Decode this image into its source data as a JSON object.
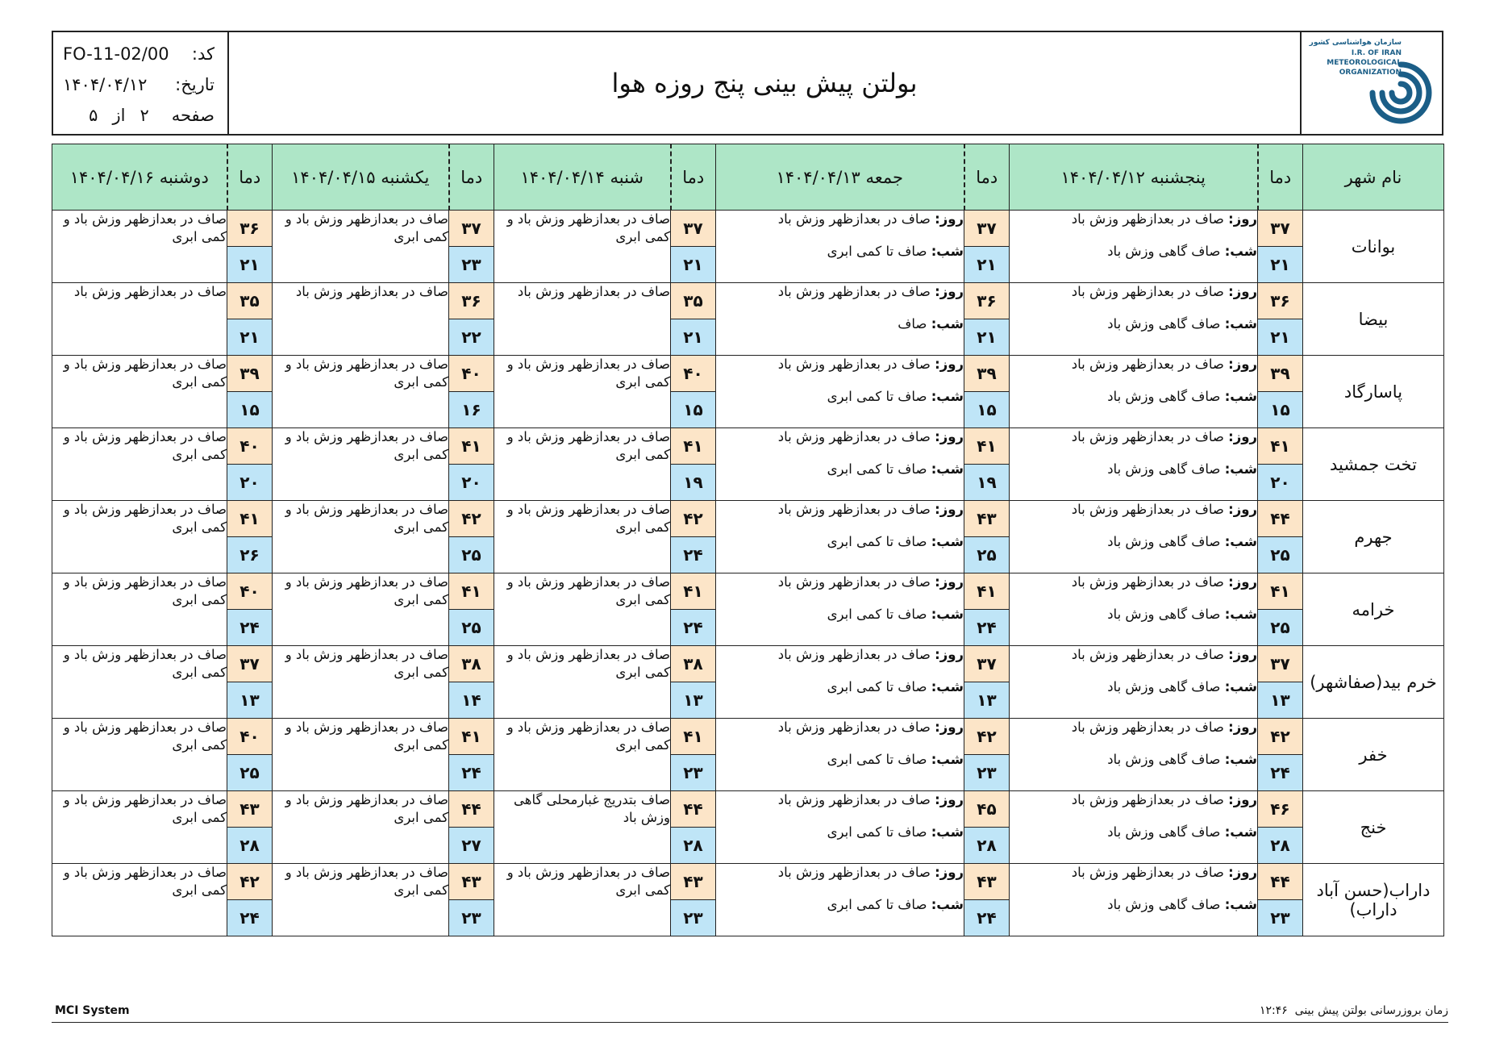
{
  "header": {
    "title": "بولتن پیش بینی پنج روزه هوا",
    "org_fa": "سازمان هواشناسی کشور",
    "org_en": [
      "I.R. OF IRAN",
      "METEOROLOGICAL",
      "ORGANIZATION"
    ],
    "code_label": "کد:",
    "code_value": "FO-11-02/00",
    "date_label": "تاریخ:",
    "date_value": "۱۴۰۴/۰۴/۱۲",
    "page_label": "صفحه",
    "page_number": "۲",
    "page_of": "از",
    "page_total": "۵"
  },
  "columns": {
    "city": "نام شهر",
    "temp": "دما",
    "days": [
      "پنجشنبه ۱۴۰۴/۰۴/۱۲",
      "جمعه ۱۴۰۴/۰۴/۱۳",
      "شنبه ۱۴۰۴/۰۴/۱۴",
      "یکشنبه ۱۴۰۴/۰۴/۱۵",
      "دوشنبه ۱۴۰۴/۰۴/۱۶"
    ]
  },
  "labels": {
    "day": "روز:",
    "night": "شب:"
  },
  "rows": [
    {
      "city": "بوانات",
      "d1": "صاف در بعدازظهر وزش باد",
      "n1": "صاف گاهی وزش باد",
      "d2": "صاف در بعدازظهر وزش باد",
      "n2": "صاف تا کمی ابری",
      "d3": "صاف در بعدازظهر وزش باد و کمی ابری",
      "d4": "صاف در بعدازظهر وزش باد و کمی ابری",
      "d5": "صاف در بعدازظهر وزش باد و کمی ابری",
      "t": [
        [
          "۳۷",
          "۲۱"
        ],
        [
          "۳۷",
          "۲۱"
        ],
        [
          "۳۷",
          "۲۱"
        ],
        [
          "۳۷",
          "۲۳"
        ],
        [
          "۳۶",
          "۲۱"
        ]
      ]
    },
    {
      "city": "بیضا",
      "d1": "صاف در بعدازظهر وزش باد",
      "n1": "صاف گاهی وزش باد",
      "d2": "صاف در بعدازظهر وزش باد",
      "n2": "صاف",
      "d3": "صاف در بعدازظهر وزش باد",
      "d4": "صاف در بعدازظهر وزش باد",
      "d5": "صاف در بعدازظهر وزش باد",
      "t": [
        [
          "۳۶",
          "۲۱"
        ],
        [
          "۳۶",
          "۲۱"
        ],
        [
          "۳۵",
          "۲۱"
        ],
        [
          "۳۶",
          "۲۲"
        ],
        [
          "۳۵",
          "۲۱"
        ]
      ]
    },
    {
      "city": "پاسارگاد",
      "d1": "صاف در بعدازظهر وزش باد",
      "n1": "صاف گاهی وزش باد",
      "d2": "صاف در بعدازظهر وزش باد",
      "n2": "صاف تا کمی ابری",
      "d3": "صاف در بعدازظهر وزش باد و کمی ابری",
      "d4": "صاف در بعدازظهر وزش باد و کمی ابری",
      "d5": "صاف در بعدازظهر وزش باد و کمی ابری",
      "t": [
        [
          "۳۹",
          "۱۵"
        ],
        [
          "۳۹",
          "۱۵"
        ],
        [
          "۴۰",
          "۱۵"
        ],
        [
          "۴۰",
          "۱۶"
        ],
        [
          "۳۹",
          "۱۵"
        ]
      ]
    },
    {
      "city": "تخت جمشید",
      "d1": "صاف در بعدازظهر وزش باد",
      "n1": "صاف گاهی وزش باد",
      "d2": "صاف در بعدازظهر وزش باد",
      "n2": "صاف تا کمی ابری",
      "d3": "صاف در بعدازظهر وزش باد و کمی ابری",
      "d4": "صاف در بعدازظهر وزش باد و کمی ابری",
      "d5": "صاف در بعدازظهر وزش باد و کمی ابری",
      "t": [
        [
          "۴۱",
          "۲۰"
        ],
        [
          "۴۱",
          "۱۹"
        ],
        [
          "۴۱",
          "۱۹"
        ],
        [
          "۴۱",
          "۲۰"
        ],
        [
          "۴۰",
          "۲۰"
        ]
      ]
    },
    {
      "city": "جهرم",
      "d1": "صاف در بعدازظهر وزش باد",
      "n1": "صاف گاهی وزش باد",
      "d2": "صاف در بعدازظهر وزش باد",
      "n2": "صاف تا کمی ابری",
      "d3": "صاف در بعدازظهر وزش باد و کمی ابری",
      "d4": "صاف در بعدازظهر وزش باد و کمی ابری",
      "d5": "صاف در بعدازظهر وزش باد و کمی ابری",
      "t": [
        [
          "۴۴",
          "۲۵"
        ],
        [
          "۴۳",
          "۲۵"
        ],
        [
          "۴۲",
          "۲۴"
        ],
        [
          "۴۲",
          "۲۵"
        ],
        [
          "۴۱",
          "۲۶"
        ]
      ]
    },
    {
      "city": "خرامه",
      "d1": "صاف در بعدازظهر وزش باد",
      "n1": "صاف گاهی وزش باد",
      "d2": "صاف در بعدازظهر وزش باد",
      "n2": "صاف تا کمی ابری",
      "d3": "صاف در بعدازظهر وزش باد و کمی ابری",
      "d4": "صاف در بعدازظهر وزش باد و کمی ابری",
      "d5": "صاف در بعدازظهر وزش باد و کمی ابری",
      "t": [
        [
          "۴۱",
          "۲۵"
        ],
        [
          "۴۱",
          "۲۴"
        ],
        [
          "۴۱",
          "۲۴"
        ],
        [
          "۴۱",
          "۲۵"
        ],
        [
          "۴۰",
          "۲۴"
        ]
      ]
    },
    {
      "city": "خرم بید(صفاشهر)",
      "d1": "صاف در بعدازظهر وزش باد",
      "n1": "صاف گاهی وزش باد",
      "d2": "صاف در بعدازظهر وزش باد",
      "n2": "صاف تا کمی ابری",
      "d3": "صاف در بعدازظهر وزش باد و کمی ابری",
      "d4": "صاف در بعدازظهر وزش باد و کمی ابری",
      "d5": "صاف در بعدازظهر وزش باد و کمی ابری",
      "t": [
        [
          "۳۷",
          "۱۳"
        ],
        [
          "۳۷",
          "۱۳"
        ],
        [
          "۳۸",
          "۱۳"
        ],
        [
          "۳۸",
          "۱۴"
        ],
        [
          "۳۷",
          "۱۳"
        ]
      ]
    },
    {
      "city": "خفر",
      "d1": "صاف در بعدازظهر وزش باد",
      "n1": "صاف گاهی وزش باد",
      "d2": "صاف در بعدازظهر وزش باد",
      "n2": "صاف تا کمی ابری",
      "d3": "صاف در بعدازظهر وزش باد و کمی ابری",
      "d4": "صاف در بعدازظهر وزش باد و کمی ابری",
      "d5": "صاف در بعدازظهر وزش باد و کمی ابری",
      "t": [
        [
          "۴۲",
          "۲۴"
        ],
        [
          "۴۲",
          "۲۳"
        ],
        [
          "۴۱",
          "۲۳"
        ],
        [
          "۴۱",
          "۲۴"
        ],
        [
          "۴۰",
          "۲۵"
        ]
      ]
    },
    {
      "city": "خنج",
      "d1": "صاف در بعدازظهر وزش باد",
      "n1": "صاف گاهی وزش باد",
      "d2": "صاف در بعدازظهر وزش باد",
      "n2": "صاف تا کمی ابری",
      "d3": "صاف بتدریج غبارمحلی گاهی وزش باد",
      "d4": "صاف در بعدازظهر وزش باد و کمی ابری",
      "d5": "صاف در بعدازظهر وزش باد و کمی ابری",
      "t": [
        [
          "۴۶",
          "۲۸"
        ],
        [
          "۴۵",
          "۲۸"
        ],
        [
          "۴۴",
          "۲۸"
        ],
        [
          "۴۴",
          "۲۷"
        ],
        [
          "۴۳",
          "۲۸"
        ]
      ]
    },
    {
      "city": "داراب(حسن آباد داراب)",
      "d1": "صاف در بعدازظهر وزش باد",
      "n1": "صاف گاهی وزش باد",
      "d2": "صاف در بعدازظهر وزش باد",
      "n2": "صاف تا کمی ابری",
      "d3": "صاف در بعدازظهر وزش باد و کمی ابری",
      "d4": "صاف در بعدازظهر وزش باد و کمی ابری",
      "d5": "صاف در بعدازظهر وزش باد و کمی ابری",
      "t": [
        [
          "۴۴",
          "۲۳"
        ],
        [
          "۴۳",
          "۲۴"
        ],
        [
          "۴۳",
          "۲۳"
        ],
        [
          "۴۳",
          "۲۳"
        ],
        [
          "۴۲",
          "۲۴"
        ]
      ]
    }
  ],
  "footer": {
    "left": "MCI System",
    "right_label": "زمان بروزرسانی بولتن پیش بینی",
    "right_time": "۱۲:۴۶"
  }
}
